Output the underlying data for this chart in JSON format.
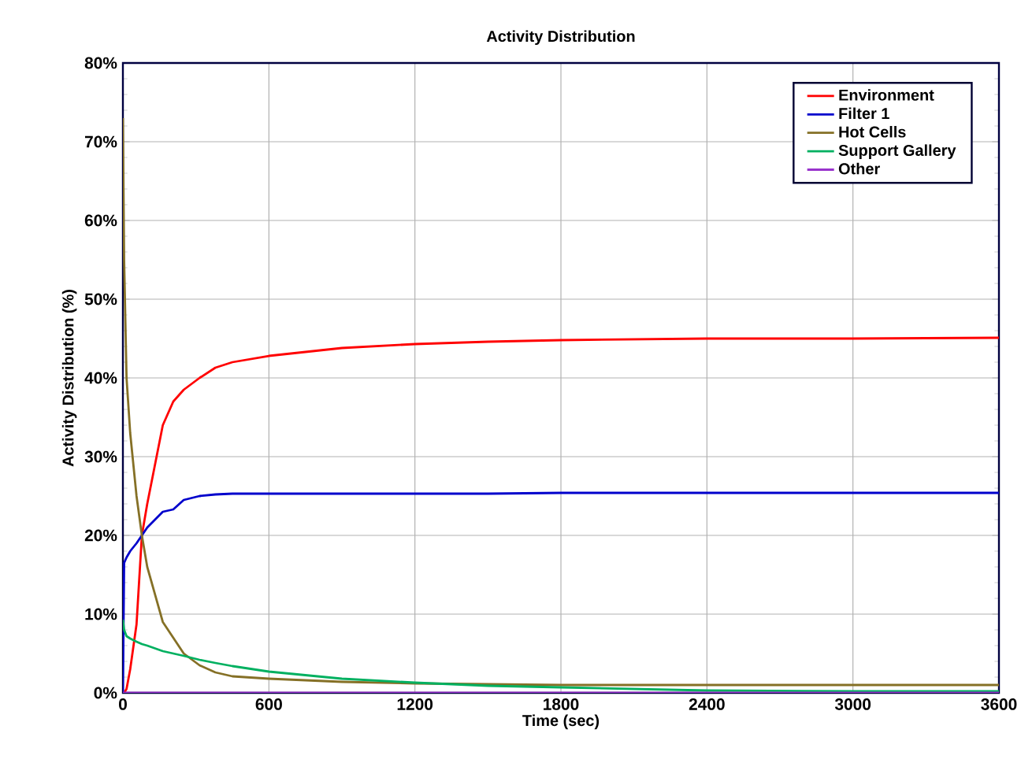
{
  "chart_data": {
    "type": "line",
    "title": "Activity Distribution",
    "xlabel": "Time (sec)",
    "ylabel": "Activity Distribution (%)",
    "x": [
      0,
      5,
      15,
      30,
      56,
      78,
      100,
      164,
      207,
      250,
      315,
      380,
      450,
      600,
      900,
      1200,
      1500,
      1800,
      2400,
      3000,
      3600
    ],
    "series": [
      {
        "name": "Environment",
        "color": "#ff0000",
        "values": [
          0,
          0,
          0.5,
          3,
          8.7,
          20,
          24,
          34,
          37,
          38.5,
          40,
          41.3,
          42,
          42.8,
          43.8,
          44.3,
          44.6,
          44.8,
          45,
          45,
          45.1
        ]
      },
      {
        "name": "Filter 1",
        "color": "#0000cc",
        "values": [
          0,
          16.5,
          17.2,
          18,
          19,
          20,
          21,
          23,
          23.3,
          24.5,
          25,
          25.2,
          25.3,
          25.3,
          25.3,
          25.3,
          25.3,
          25.4,
          25.4,
          25.4,
          25.4
        ]
      },
      {
        "name": "Hot Cells",
        "color": "#857026",
        "values": [
          73,
          55,
          40,
          33,
          25,
          20,
          16,
          9,
          7,
          5,
          3.5,
          2.6,
          2.1,
          1.8,
          1.4,
          1.2,
          1.1,
          1,
          1,
          1,
          1
        ]
      },
      {
        "name": "Support Gallery",
        "color": "#00b060",
        "values": [
          9.3,
          8,
          7.2,
          6.9,
          6.5,
          6.2,
          6,
          5.3,
          5,
          4.7,
          4.2,
          3.8,
          3.4,
          2.7,
          1.8,
          1.3,
          0.9,
          0.7,
          0.3,
          0.2,
          0.2
        ]
      },
      {
        "name": "Other",
        "color": "#9933cc",
        "values": [
          0,
          0,
          0,
          0,
          0,
          0,
          0,
          0,
          0,
          0,
          0,
          0,
          0,
          0,
          0,
          0,
          0,
          0,
          0,
          0,
          0
        ]
      }
    ],
    "xlim": [
      0,
      3600
    ],
    "ylim": [
      0,
      80
    ],
    "xticks": [
      0,
      600,
      1200,
      1800,
      2400,
      3000,
      3600
    ],
    "yticks": [
      {
        "value": 0,
        "label": "0%"
      },
      {
        "value": 10,
        "label": "10%"
      },
      {
        "value": 20,
        "label": "20%"
      },
      {
        "value": 30,
        "label": "30%"
      },
      {
        "value": 40,
        "label": "40%"
      },
      {
        "value": 50,
        "label": "50%"
      },
      {
        "value": 60,
        "label": "60%"
      },
      {
        "value": 70,
        "label": "70%"
      },
      {
        "value": 80,
        "label": "80%"
      }
    ],
    "grid": true,
    "legend": "top right",
    "marker": "none",
    "line_style": "solid"
  }
}
